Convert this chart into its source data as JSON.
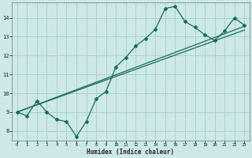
{
  "xlabel": "Humidex (Indice chaleur)",
  "bg_color": "#cce8e8",
  "grid_color": "#aacccc",
  "line_color": "#1a6b5a",
  "x_data": [
    0,
    1,
    2,
    3,
    4,
    5,
    6,
    7,
    8,
    9,
    10,
    11,
    12,
    13,
    14,
    15,
    16,
    17,
    18,
    19,
    20,
    21,
    22,
    23
  ],
  "y_main": [
    9.0,
    8.8,
    9.6,
    9.0,
    8.6,
    8.5,
    7.7,
    8.5,
    9.7,
    10.1,
    11.4,
    11.9,
    12.5,
    12.9,
    13.4,
    14.5,
    14.6,
    13.8,
    13.5,
    13.1,
    12.8,
    13.3,
    14.0,
    13.6
  ],
  "trend1_start": 9.0,
  "trend1_end": 13.55,
  "trend2_start": 9.0,
  "trend2_end": 13.35,
  "ylim": [
    7.5,
    14.8
  ],
  "yticks": [
    8,
    9,
    10,
    11,
    12,
    13,
    14
  ],
  "xlim": [
    -0.5,
    23.5
  ],
  "xticks": [
    0,
    1,
    2,
    3,
    4,
    5,
    6,
    7,
    8,
    9,
    10,
    11,
    12,
    13,
    14,
    15,
    16,
    17,
    18,
    19,
    20,
    21,
    22,
    23
  ]
}
